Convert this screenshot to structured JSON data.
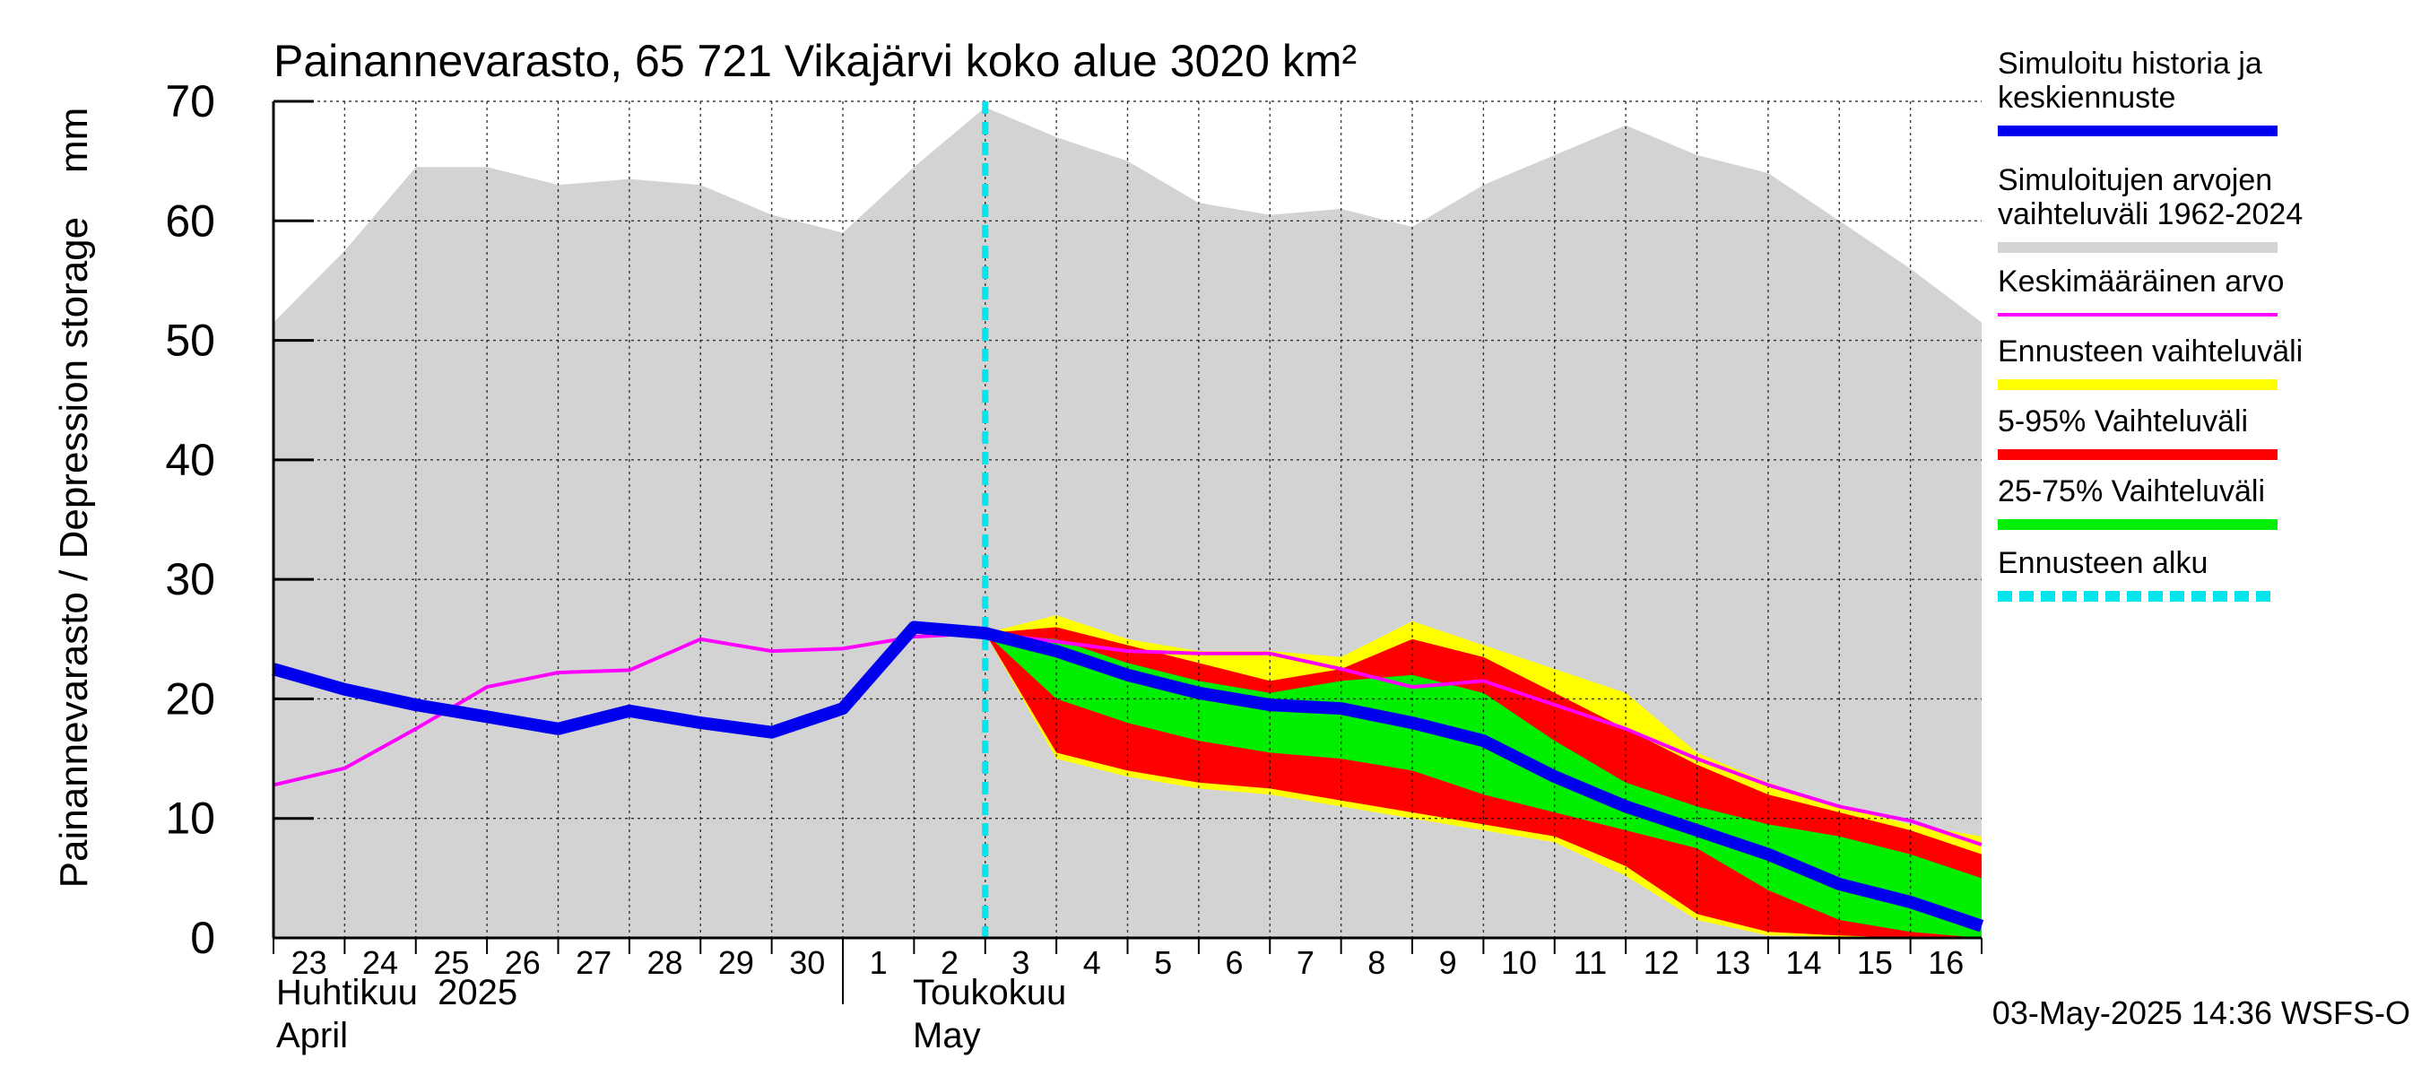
{
  "chart_data": {
    "type": "area",
    "title": "Painannevarasto, 65 721 Vikajärvi koko alue 3020 km²",
    "ylabel": "Painannevarasto / Depression storage    mm",
    "ylim": [
      0,
      70
    ],
    "yticks": [
      0,
      10,
      20,
      30,
      40,
      50,
      60,
      70
    ],
    "grid": true,
    "legend_position": "right",
    "x_tick_labels": [
      "23",
      "24",
      "25",
      "26",
      "27",
      "28",
      "29",
      "30",
      "1",
      "2",
      "3",
      "4",
      "5",
      "6",
      "7",
      "8",
      "9",
      "10",
      "11",
      "12",
      "13",
      "14",
      "15",
      "16"
    ],
    "month_labels": [
      {
        "line1": "Huhtikuu  2025",
        "line2": "April"
      },
      {
        "line1": "Toukokuu",
        "line2": "May"
      }
    ],
    "forecast_start_label": "3",
    "timestamp": "03-May-2025 14:36 WSFS-O",
    "legend": [
      {
        "label": "Simuloitu historia ja keskiennuste",
        "color": "#0000ee",
        "style": "thick"
      },
      {
        "label": "Simuloitujen arvojen vaihteluväli 1962-2024",
        "color": "#d3d3d3",
        "style": "thick"
      },
      {
        "label": "Keskimääräinen arvo",
        "color": "#ff00ff",
        "style": "thin"
      },
      {
        "label": "Ennusteen vaihteluväli",
        "color": "#ffff00",
        "style": "thick"
      },
      {
        "label": "5-95% Vaihteluväli",
        "color": "#ff0000",
        "style": "thick"
      },
      {
        "label": "25-75% Vaihteluväli",
        "color": "#00ee00",
        "style": "thick"
      },
      {
        "label": "Ennusteen alku",
        "color": "#00e5ee",
        "style": "dashed"
      }
    ],
    "x_index": [
      0,
      1,
      2,
      3,
      4,
      5,
      6,
      7,
      8,
      9,
      10,
      11,
      12,
      13,
      14,
      15,
      16,
      17,
      18,
      19,
      20,
      21,
      22,
      23,
      24
    ],
    "hist_range": {
      "upper": [
        51.5,
        57.5,
        64.5,
        64.5,
        63,
        63.5,
        63,
        60.5,
        59,
        64.5,
        69.5,
        67,
        65,
        61.5,
        60.5,
        61,
        59.5,
        63,
        65.5,
        68,
        65.5,
        64,
        60,
        56,
        51.5
      ],
      "lower": [
        0,
        0,
        0,
        0,
        0,
        0,
        0,
        0,
        0,
        0,
        0,
        0,
        0,
        0,
        0,
        0,
        0,
        0,
        0,
        0,
        0,
        0,
        0,
        0,
        0
      ]
    },
    "forecast_x": [
      10,
      11,
      12,
      13,
      14,
      15,
      16,
      17,
      18,
      19,
      20,
      21,
      22,
      23,
      24
    ],
    "ennuste_range": {
      "upper": [
        25.5,
        27,
        25,
        24,
        24,
        23.5,
        26.5,
        24.5,
        22.5,
        20.5,
        15.5,
        13,
        11,
        9.5,
        8.5
      ],
      "lower": [
        25.5,
        15,
        13.5,
        12.5,
        12,
        11,
        10,
        9,
        8,
        5.2,
        1.5,
        0.2,
        0.1,
        0,
        0
      ]
    },
    "p5_95": {
      "upper": [
        25.5,
        26,
        24.5,
        23,
        21.5,
        22.5,
        25,
        23.5,
        20.5,
        17.5,
        14.5,
        12,
        10.5,
        9,
        7
      ],
      "lower": [
        25.5,
        15.5,
        14,
        13,
        12.5,
        11.5,
        10.5,
        9.5,
        8.5,
        6,
        2,
        0.5,
        0.2,
        0,
        0
      ]
    },
    "p25_75": {
      "upper": [
        25.5,
        25,
        23,
        21.5,
        20.5,
        21.5,
        22,
        20.5,
        16.5,
        13,
        11,
        9.5,
        8.5,
        7,
        5
      ],
      "lower": [
        25.5,
        20,
        18,
        16.5,
        15.5,
        15,
        14,
        12,
        10.5,
        9,
        7.5,
        4,
        1.5,
        0.5,
        0
      ]
    },
    "simulated_median": [
      22.5,
      20.8,
      19.5,
      18.5,
      17.5,
      19,
      18,
      17.2,
      19.2,
      26,
      25.5,
      24,
      22,
      20.5,
      19.5,
      19.2,
      18,
      16.5,
      13.5,
      11,
      9,
      7,
      4.5,
      3,
      1
    ],
    "mean": [
      12.8,
      14.2,
      17.5,
      21,
      22.2,
      22.4,
      25,
      24,
      24.2,
      25.2,
      25.5,
      24.8,
      24,
      23.8,
      23.8,
      22.5,
      21,
      21.5,
      19.5,
      17.5,
      15,
      12.8,
      11,
      9.8,
      7.8
    ]
  }
}
